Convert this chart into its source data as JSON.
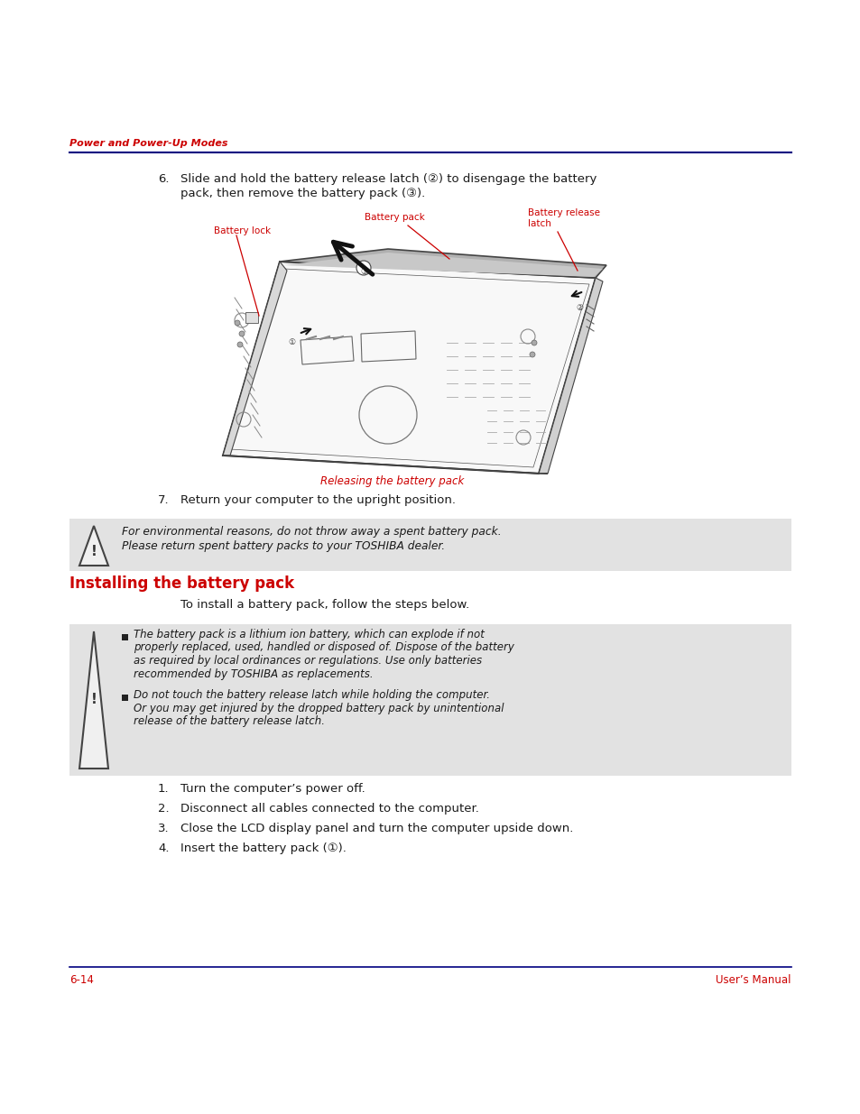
{
  "page_bg": "#ffffff",
  "header_text": "Power and Power-Up Modes",
  "header_color": "#cc0000",
  "header_line_color": "#000080",
  "footer_left": "6-14",
  "footer_right": "User’s Manual",
  "footer_color": "#cc0000",
  "footer_line_color": "#000080",
  "section_title": "Installing the battery pack",
  "section_title_color": "#cc0000",
  "step6_line1": "Slide and hold the battery release latch (②) to disengage the battery",
  "step6_line2": "pack, then remove the battery pack (③).",
  "caption": "Releasing the battery pack",
  "caption_color": "#cc0000",
  "step7_body": "Return your computer to the upright position.",
  "warning1_line1": "For environmental reasons, do not throw away a spent battery pack.",
  "warning1_line2": "Please return spent battery packs to your TOSHIBA dealer.",
  "warning_bg": "#e2e2e2",
  "install_intro": "To install a battery pack, follow the steps below.",
  "warning2_lines1": [
    "The battery pack is a lithium ion battery, which can explode if not",
    "properly replaced, used, handled or disposed of. Dispose of the battery",
    "as required by local ordinances or regulations. Use only batteries",
    "recommended by TOSHIBA as replacements."
  ],
  "warning2_lines2": [
    "Do not touch the battery release latch while holding the computer.",
    "Or you may get injured by the dropped battery pack by unintentional",
    "release of the battery release latch."
  ],
  "steps_install": [
    "Turn the computer’s power off.",
    "Disconnect all cables connected to the computer.",
    "Close the LCD display panel and turn the computer upside down.",
    "Insert the battery pack (①)."
  ],
  "label_battery_lock": "Battery lock",
  "label_battery_pack": "Battery pack",
  "label_battery_release_line1": "Battery release",
  "label_battery_release_line2": "latch",
  "label_color": "#cc0000",
  "body_text_color": "#1a1a1a"
}
